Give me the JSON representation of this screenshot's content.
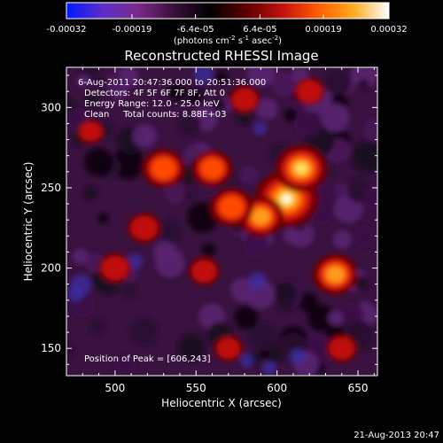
{
  "colors": {
    "background": "#000000",
    "text": "#ffffff",
    "colormap_stops": [
      "#0018ff",
      "#5a2ec8",
      "#7a2a8a",
      "#3a0f3c",
      "#000000",
      "#5a0000",
      "#c01010",
      "#ff5a00",
      "#ffaa20",
      "#ffffff"
    ]
  },
  "colorbar": {
    "ticks": [
      "-0.00032",
      "-0.00019",
      "-6.4e-05",
      "6.4e-05",
      "0.00019",
      "0.00032"
    ],
    "min": -0.00032,
    "max": 0.00032,
    "unit_base": "(photons cm",
    "unit_exp1": "-2",
    "unit_mid": " s",
    "unit_exp2": "-1",
    "unit_mid2": " asec",
    "unit_exp3": "-2",
    "unit_end": ")"
  },
  "chart_data": {
    "type": "heatmap",
    "title": "Reconstructed RHESSI Image",
    "xlabel": "Heliocentric X (arcsec)",
    "ylabel": "Heliocentric Y (arcsec)",
    "xlim": [
      470,
      662
    ],
    "ylim": [
      133,
      325
    ],
    "xticks": [
      500,
      550,
      600,
      650
    ],
    "yticks": [
      150,
      200,
      250,
      300
    ],
    "peak": {
      "x": 606,
      "y": 243
    },
    "sources": [
      {
        "x": 606,
        "y": 243,
        "intensity": 1.0
      },
      {
        "x": 615,
        "y": 262,
        "intensity": 0.75
      },
      {
        "x": 590,
        "y": 232,
        "intensity": 0.6
      },
      {
        "x": 572,
        "y": 238,
        "intensity": 0.55
      },
      {
        "x": 560,
        "y": 262,
        "intensity": 0.5
      },
      {
        "x": 530,
        "y": 262,
        "intensity": 0.55
      },
      {
        "x": 636,
        "y": 196,
        "intensity": 0.6
      },
      {
        "x": 518,
        "y": 225,
        "intensity": 0.35
      },
      {
        "x": 500,
        "y": 200,
        "intensity": 0.35
      },
      {
        "x": 555,
        "y": 198,
        "intensity": 0.3
      },
      {
        "x": 580,
        "y": 305,
        "intensity": 0.3
      },
      {
        "x": 620,
        "y": 310,
        "intensity": 0.3
      },
      {
        "x": 570,
        "y": 150,
        "intensity": 0.25
      },
      {
        "x": 640,
        "y": 150,
        "intensity": 0.3
      },
      {
        "x": 485,
        "y": 285,
        "intensity": 0.2
      }
    ],
    "annotations": {
      "line1": "6-Aug-2011 20:47:36.000 to 20:51:36.000",
      "line2": "Detectors: 4F 5F 6F 7F 8F, Att 0",
      "line3": "Energy Range: 12.0 - 25.0 keV",
      "line4": "Clean     Total counts: 8.88E+03",
      "peak_label": "Position of Peak = [606,243]"
    }
  },
  "footer": {
    "timestamp": "21-Aug-2013 20:47"
  }
}
